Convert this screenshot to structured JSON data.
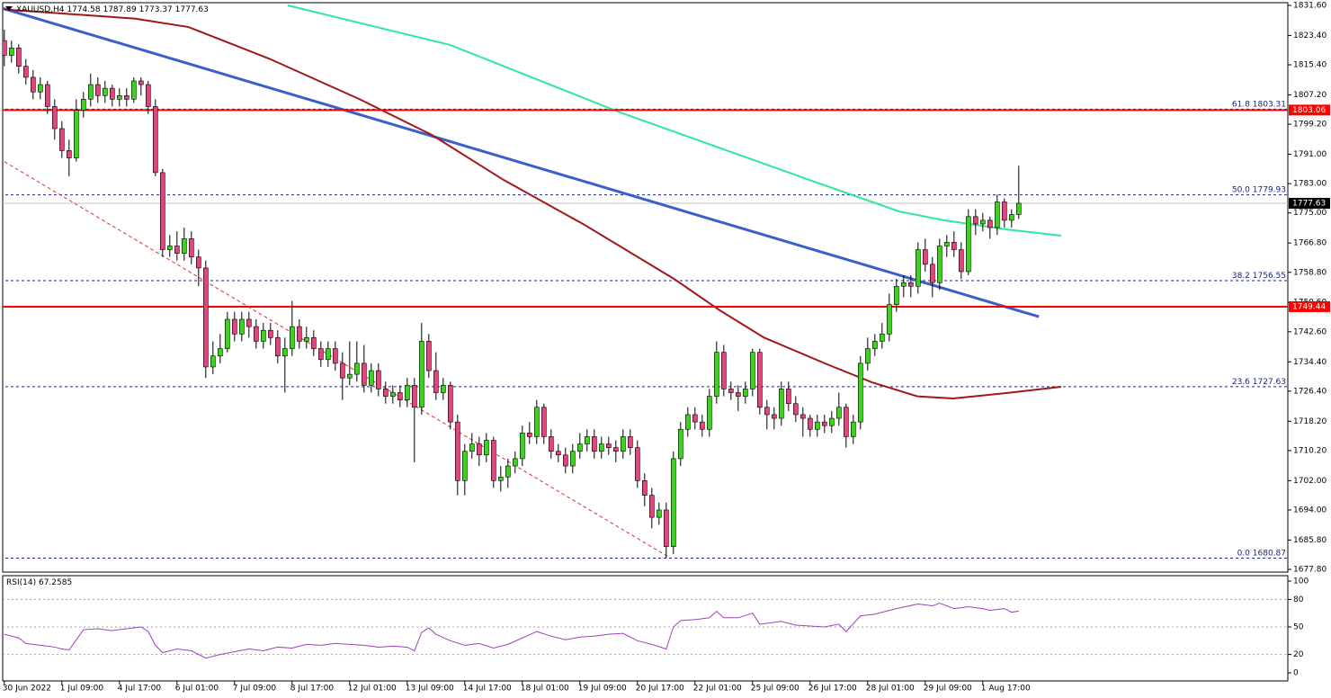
{
  "chart_data": {
    "type": "candlestick",
    "symbol": "XAUUSD,H4",
    "up_color": "#3fd11f",
    "down_color": "#e0457b",
    "ohlc": [
      [
        1822,
        1825,
        1815,
        1818
      ],
      [
        1818,
        1822,
        1816,
        1820
      ],
      [
        1820,
        1821,
        1813,
        1815
      ],
      [
        1815,
        1817,
        1810,
        1812
      ],
      [
        1812,
        1814,
        1806,
        1808
      ],
      [
        1808,
        1812,
        1806,
        1810
      ],
      [
        1810,
        1811,
        1802,
        1804
      ],
      [
        1804,
        1806,
        1795,
        1798
      ],
      [
        1798,
        1800,
        1790,
        1792
      ],
      [
        1792,
        1795,
        1785,
        1790
      ],
      [
        1790,
        1806,
        1789,
        1803
      ],
      [
        1803,
        1808,
        1801,
        1806
      ],
      [
        1806,
        1813,
        1804,
        1810
      ],
      [
        1810,
        1812,
        1805,
        1807
      ],
      [
        1807,
        1811,
        1805,
        1809
      ],
      [
        1809,
        1810,
        1804,
        1806
      ],
      [
        1806,
        1809,
        1804,
        1807
      ],
      [
        1807,
        1809,
        1804,
        1806
      ],
      [
        1806,
        1812,
        1805,
        1811
      ],
      [
        1811,
        1812,
        1807,
        1810
      ],
      [
        1810,
        1811,
        1802,
        1804
      ],
      [
        1804,
        1806,
        1785,
        1786
      ],
      [
        1786,
        1787,
        1763,
        1765
      ],
      [
        1765,
        1769,
        1763,
        1766
      ],
      [
        1766,
        1770,
        1762,
        1764
      ],
      [
        1764,
        1771,
        1762,
        1768
      ],
      [
        1768,
        1770,
        1761,
        1763
      ],
      [
        1763,
        1765,
        1755,
        1760
      ],
      [
        1760,
        1762,
        1730,
        1733
      ],
      [
        1733,
        1740,
        1731,
        1736
      ],
      [
        1736,
        1742,
        1734,
        1738
      ],
      [
        1738,
        1748,
        1737,
        1746
      ],
      [
        1746,
        1748,
        1740,
        1742
      ],
      [
        1742,
        1748,
        1740,
        1746
      ],
      [
        1746,
        1748,
        1741,
        1744
      ],
      [
        1744,
        1746,
        1738,
        1740
      ],
      [
        1740,
        1745,
        1738,
        1743
      ],
      [
        1743,
        1745,
        1739,
        1741
      ],
      [
        1741,
        1743,
        1734,
        1736
      ],
      [
        1736,
        1741,
        1726,
        1738
      ],
      [
        1738,
        1751,
        1736,
        1744
      ],
      [
        1744,
        1746,
        1738,
        1740
      ],
      [
        1740,
        1744,
        1738,
        1741
      ],
      [
        1741,
        1743,
        1736,
        1738
      ],
      [
        1738,
        1740,
        1733,
        1735
      ],
      [
        1735,
        1740,
        1733,
        1738
      ],
      [
        1738,
        1740,
        1732,
        1734
      ],
      [
        1734,
        1737,
        1724,
        1730
      ],
      [
        1730,
        1740,
        1728,
        1731
      ],
      [
        1731,
        1740,
        1729,
        1734
      ],
      [
        1734,
        1739,
        1726,
        1728
      ],
      [
        1728,
        1734,
        1726,
        1732
      ],
      [
        1732,
        1734,
        1725,
        1727
      ],
      [
        1727,
        1729,
        1723,
        1725
      ],
      [
        1725,
        1728,
        1723,
        1726
      ],
      [
        1726,
        1728,
        1722,
        1724
      ],
      [
        1724,
        1730,
        1722,
        1728
      ],
      [
        1728,
        1730,
        1707,
        1722
      ],
      [
        1722,
        1745,
        1720,
        1740
      ],
      [
        1740,
        1742,
        1730,
        1732
      ],
      [
        1732,
        1737,
        1724,
        1726
      ],
      [
        1726,
        1730,
        1724,
        1728
      ],
      [
        1728,
        1729,
        1716,
        1718
      ],
      [
        1718,
        1720,
        1698,
        1702
      ],
      [
        1702,
        1712,
        1698,
        1710
      ],
      [
        1710,
        1715,
        1708,
        1712
      ],
      [
        1712,
        1714,
        1706,
        1709
      ],
      [
        1709,
        1715,
        1707,
        1713
      ],
      [
        1713,
        1714,
        1700,
        1702
      ],
      [
        1702,
        1706,
        1699,
        1703
      ],
      [
        1703,
        1708,
        1700,
        1706
      ],
      [
        1706,
        1710,
        1704,
        1708
      ],
      [
        1708,
        1717,
        1706,
        1715
      ],
      [
        1715,
        1718,
        1712,
        1714
      ],
      [
        1714,
        1724,
        1712,
        1722
      ],
      [
        1722,
        1723,
        1712,
        1714
      ],
      [
        1714,
        1716,
        1708,
        1710
      ],
      [
        1710,
        1712,
        1707,
        1709
      ],
      [
        1709,
        1711,
        1704,
        1706
      ],
      [
        1706,
        1712,
        1704,
        1710
      ],
      [
        1710,
        1715,
        1708,
        1712
      ],
      [
        1712,
        1716,
        1710,
        1714
      ],
      [
        1714,
        1716,
        1708,
        1710
      ],
      [
        1710,
        1714,
        1708,
        1712
      ],
      [
        1712,
        1714,
        1709,
        1711
      ],
      [
        1711,
        1713,
        1707,
        1710
      ],
      [
        1710,
        1716,
        1708,
        1714
      ],
      [
        1714,
        1716,
        1709,
        1711
      ],
      [
        1711,
        1713,
        1700,
        1702
      ],
      [
        1702,
        1704,
        1695,
        1698
      ],
      [
        1698,
        1700,
        1689,
        1692
      ],
      [
        1692,
        1696,
        1690,
        1694
      ],
      [
        1694,
        1696,
        1680.87,
        1684
      ],
      [
        1684,
        1710,
        1682,
        1708
      ],
      [
        1708,
        1718,
        1706,
        1716
      ],
      [
        1716,
        1722,
        1714,
        1720
      ],
      [
        1720,
        1722,
        1716,
        1718
      ],
      [
        1718,
        1720,
        1714,
        1716
      ],
      [
        1716,
        1727,
        1714,
        1725
      ],
      [
        1725,
        1740,
        1723,
        1737
      ],
      [
        1737,
        1739,
        1725,
        1727
      ],
      [
        1727,
        1729,
        1724,
        1726
      ],
      [
        1726,
        1728,
        1721,
        1725
      ],
      [
        1725,
        1729,
        1723,
        1727
      ],
      [
        1727,
        1738,
        1725,
        1737
      ],
      [
        1737,
        1738,
        1720,
        1722
      ],
      [
        1722,
        1724,
        1716,
        1720
      ],
      [
        1720,
        1722,
        1716,
        1719
      ],
      [
        1719,
        1729,
        1717,
        1727
      ],
      [
        1727,
        1729,
        1721,
        1723
      ],
      [
        1723,
        1725,
        1718,
        1720
      ],
      [
        1720,
        1722,
        1714,
        1719
      ],
      [
        1719,
        1720,
        1714,
        1716
      ],
      [
        1716,
        1720,
        1714,
        1718
      ],
      [
        1718,
        1720,
        1715,
        1717
      ],
      [
        1717,
        1721,
        1715,
        1719
      ],
      [
        1719,
        1726,
        1717,
        1722
      ],
      [
        1722,
        1723,
        1711,
        1714
      ],
      [
        1714,
        1720,
        1712,
        1718
      ],
      [
        1718,
        1736,
        1716,
        1734
      ],
      [
        1734,
        1741,
        1732,
        1738
      ],
      [
        1738,
        1742,
        1736,
        1740
      ],
      [
        1740,
        1745,
        1738,
        1742
      ],
      [
        1742,
        1753,
        1740,
        1750
      ],
      [
        1750,
        1757,
        1748,
        1755
      ],
      [
        1755,
        1758,
        1752,
        1756
      ],
      [
        1756,
        1758,
        1752,
        1755
      ],
      [
        1755,
        1767,
        1753,
        1765
      ],
      [
        1765,
        1768,
        1759,
        1761
      ],
      [
        1761,
        1763,
        1752,
        1756
      ],
      [
        1756,
        1768,
        1754,
        1766
      ],
      [
        1766,
        1769,
        1763,
        1767
      ],
      [
        1767,
        1770,
        1763,
        1765
      ],
      [
        1765,
        1767,
        1757,
        1759
      ],
      [
        1759,
        1776,
        1758,
        1774
      ],
      [
        1774,
        1776,
        1769,
        1772
      ],
      [
        1772,
        1775,
        1770,
        1773
      ],
      [
        1773,
        1774,
        1768,
        1771
      ],
      [
        1771,
        1780,
        1769,
        1778
      ],
      [
        1778,
        1779,
        1771,
        1773
      ],
      [
        1773,
        1776,
        1771,
        1774.58
      ],
      [
        1774.58,
        1787.89,
        1773.37,
        1777.63
      ]
    ],
    "xlim": [
      -0.6,
      178.4
    ],
    "xticks": [
      {
        "value": 0,
        "label": "30 Jun 2022"
      },
      {
        "value": 8,
        "label": "1 Jul 09:00"
      },
      {
        "value": 16,
        "label": "4 Jul 17:00"
      },
      {
        "value": 24,
        "label": "6 Jul 01:00"
      },
      {
        "value": 32,
        "label": "7 Jul 09:00"
      },
      {
        "value": 40,
        "label": "8 Jul 17:00"
      },
      {
        "value": 48,
        "label": "12 Jul 01:00"
      },
      {
        "value": 56,
        "label": "13 Jul 09:00"
      },
      {
        "value": 64,
        "label": "14 Jul 17:00"
      },
      {
        "value": 72,
        "label": "18 Jul 01:00"
      },
      {
        "value": 80,
        "label": "19 Jul 09:00"
      },
      {
        "value": 88,
        "label": "20 Jul 17:00"
      },
      {
        "value": 96,
        "label": "22 Jul 01:00"
      },
      {
        "value": 104,
        "label": "25 Jul 09:00"
      },
      {
        "value": 112,
        "label": "26 Jul 17:00"
      },
      {
        "value": 120,
        "label": "28 Jul 01:00"
      },
      {
        "value": 128,
        "label": "29 Jul 09:00"
      },
      {
        "value": 136,
        "label": "1 Aug 17:00"
      }
    ],
    "ylim": [
      1677.8,
      1831.6
    ],
    "yticks": [
      {
        "value": 1831.6,
        "label": "1831.60"
      },
      {
        "value": 1823.4,
        "label": "1823.40"
      },
      {
        "value": 1815.4,
        "label": "1815.40"
      },
      {
        "value": 1807.2,
        "label": "1807.20"
      },
      {
        "value": 1799.2,
        "label": "1799.20"
      },
      {
        "value": 1791,
        "label": "1791.00"
      },
      {
        "value": 1783,
        "label": "1783.00"
      },
      {
        "value": 1775,
        "label": "1775.00"
      },
      {
        "value": 1766.8,
        "label": "1766.80"
      },
      {
        "value": 1758.8,
        "label": "1758.80"
      },
      {
        "value": 1750.6,
        "label": "1750.60"
      },
      {
        "value": 1742.6,
        "label": "1742.60"
      },
      {
        "value": 1734.4,
        "label": "1734.40"
      },
      {
        "value": 1726.4,
        "label": "1726.40"
      },
      {
        "value": 1718.2,
        "label": "1718.20"
      },
      {
        "value": 1710.2,
        "label": "1710.20"
      },
      {
        "value": 1702,
        "label": "1702.00"
      },
      {
        "value": 1694,
        "label": "1694.00"
      },
      {
        "value": 1685.8,
        "label": "1685.80"
      },
      {
        "value": 1677.8,
        "label": "1677.80"
      }
    ],
    "lines": [
      {
        "color": "#e03030",
        "dashed": true,
        "width": 1,
        "x": [
          0,
          92.5
        ],
        "values": [
          1789,
          1681
        ]
      },
      {
        "color": "#3a5fcd",
        "dashed": false,
        "width": 3,
        "x": [
          -0.6,
          143.8
        ],
        "values": [
          1831,
          1746.7
        ]
      },
      {
        "color": "#2ee89a",
        "dashed": false,
        "width": 2,
        "x": [
          39.4,
          62,
          85.6,
          111.9,
          124.4,
          130.6,
          139.4,
          146.9
        ],
        "values": [
          1831.6,
          1820.8,
          1802.4,
          1784,
          1775.4,
          1773,
          1770.5,
          1768.8
        ]
      },
      {
        "color": "#a01818",
        "dashed": false,
        "width": 2,
        "x": [
          0,
          18.1,
          25.6,
          36.9,
          49.4,
          59.4,
          69.4,
          80.6,
          93.1,
          99.4,
          105.6,
          114.4,
          120.6,
          126.9,
          131.9,
          139.4,
          146.9
        ],
        "values": [
          1830.5,
          1828,
          1825.7,
          1817,
          1806,
          1796.3,
          1784,
          1771.8,
          1757,
          1748.5,
          1741,
          1733.7,
          1728.8,
          1725,
          1724.4,
          1725.9,
          1727.6
        ]
      }
    ],
    "levels": [
      {
        "value": 1803.06,
        "color": "#ff0000"
      },
      {
        "value": 1749.44,
        "color": "#ff0000"
      }
    ],
    "fib_color": "#1a237e",
    "fibonacci": [
      {
        "ratio": 61.8,
        "price": 1803.31
      },
      {
        "ratio": {
          "value": 50,
          "label": "50.0"
        },
        "price": 1779.93
      },
      {
        "ratio": 38.2,
        "price": 1756.55
      },
      {
        "ratio": 23.6,
        "price": 1727.63
      },
      {
        "ratio": {
          "value": 0,
          "label": "0.0"
        },
        "price": 1680.87
      }
    ],
    "rsi": {
      "name": "RSI(14)",
      "color": "#a040c0",
      "ylim": [
        0,
        100
      ],
      "yticks": [
        100,
        80,
        50,
        20,
        0
      ],
      "x": [
        0,
        2,
        3,
        5,
        7,
        8,
        9,
        11,
        13,
        15,
        17,
        19,
        20,
        21,
        22,
        24,
        26,
        28,
        30,
        32,
        34,
        36,
        38,
        40,
        42,
        44,
        46,
        48,
        50,
        52,
        54,
        56,
        57,
        58,
        59,
        60,
        62,
        64,
        66,
        68,
        70,
        72,
        74,
        76,
        78,
        80,
        82,
        84,
        86,
        88,
        90,
        92,
        93,
        94,
        96,
        98,
        99,
        100,
        102,
        104,
        105,
        108,
        110,
        112,
        114,
        116,
        117,
        119,
        121,
        124,
        127,
        129,
        130,
        132,
        134,
        136,
        137,
        139,
        140,
        141
      ],
      "values": [
        42,
        38,
        32,
        30,
        28,
        26,
        25,
        47,
        48,
        46,
        48,
        50,
        45,
        30,
        22,
        26,
        24,
        16,
        20,
        23,
        26,
        24,
        28,
        27,
        31,
        30,
        32,
        31,
        30,
        28,
        29,
        28,
        24,
        44,
        49,
        42,
        35,
        30,
        32,
        27,
        31,
        38,
        45,
        40,
        36,
        39,
        40,
        42,
        43,
        35,
        31,
        26,
        50,
        57,
        58,
        60,
        67,
        60,
        60,
        65,
        53,
        56,
        52,
        51,
        50,
        53,
        45,
        62,
        64,
        70,
        75,
        73,
        76,
        70,
        72,
        70,
        68,
        70,
        66,
        67.2585
      ]
    }
  }
}
